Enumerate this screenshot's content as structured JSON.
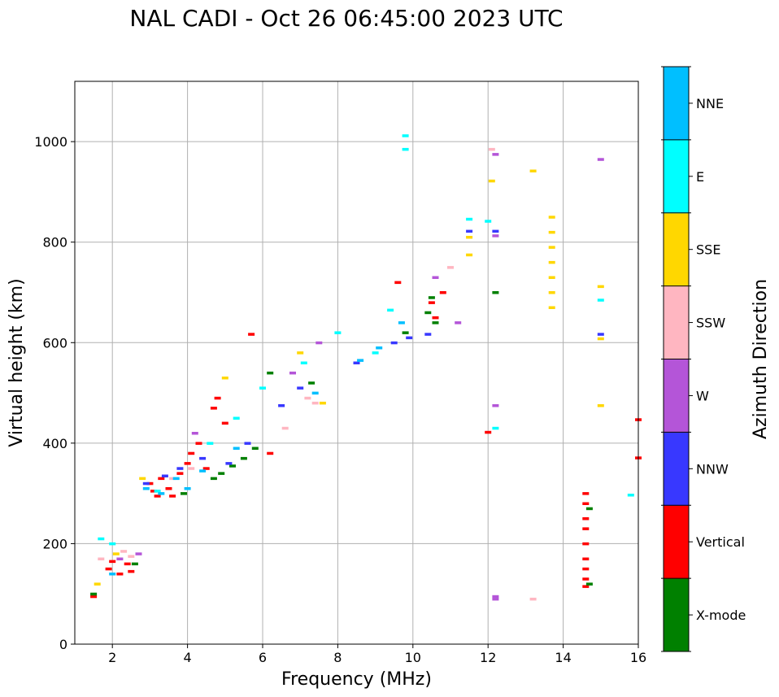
{
  "chart_data": {
    "type": "scatter",
    "title": "NAL CADI - Oct 26 06:45:00 2023 UTC",
    "xlabel": "Frequency (MHz)",
    "ylabel": "Virtual height (km)",
    "xlim": [
      1,
      16
    ],
    "ylim": [
      0,
      1120
    ],
    "xticks": [
      2,
      4,
      6,
      8,
      10,
      12,
      14,
      16
    ],
    "yticks": [
      0,
      200,
      400,
      600,
      800,
      1000
    ],
    "grid": true,
    "colorbar": {
      "title": "Azimuth Direction",
      "categories": [
        {
          "name": "X-mode",
          "color": "#008000"
        },
        {
          "name": "Vertical",
          "color": "#ff0000"
        },
        {
          "name": "NNW",
          "color": "#3838ff"
        },
        {
          "name": "W",
          "color": "#b455d8"
        },
        {
          "name": "SSW",
          "color": "#ffb6c1"
        },
        {
          "name": "SSE",
          "color": "#ffd700"
        },
        {
          "name": "E",
          "color": "#00ffff"
        },
        {
          "name": "NNE",
          "color": "#00bfff"
        }
      ]
    },
    "series": [
      {
        "name": "Vertical",
        "points": [
          [
            1.5,
            95
          ],
          [
            1.9,
            150
          ],
          [
            2.0,
            165
          ],
          [
            2.2,
            140
          ],
          [
            2.4,
            160
          ],
          [
            2.5,
            145
          ],
          [
            3.0,
            320
          ],
          [
            3.1,
            305
          ],
          [
            3.2,
            295
          ],
          [
            3.3,
            330
          ],
          [
            3.5,
            310
          ],
          [
            3.6,
            295
          ],
          [
            3.8,
            340
          ],
          [
            4.0,
            360
          ],
          [
            4.1,
            380
          ],
          [
            4.3,
            400
          ],
          [
            4.5,
            350
          ],
          [
            4.7,
            470
          ],
          [
            4.8,
            490
          ],
          [
            5.0,
            440
          ],
          [
            5.7,
            617
          ],
          [
            6.2,
            380
          ],
          [
            9.6,
            720
          ],
          [
            10.5,
            680
          ],
          [
            10.6,
            650
          ],
          [
            10.8,
            700
          ],
          [
            12.0,
            422
          ],
          [
            14.6,
            300
          ],
          [
            14.6,
            280
          ],
          [
            14.6,
            250
          ],
          [
            14.6,
            230
          ],
          [
            14.6,
            200
          ],
          [
            14.6,
            170
          ],
          [
            14.6,
            150
          ],
          [
            14.6,
            130
          ],
          [
            14.6,
            115
          ],
          [
            16.0,
            447
          ],
          [
            16.0,
            371
          ]
        ]
      },
      {
        "name": "X-mode",
        "points": [
          [
            1.5,
            100
          ],
          [
            2.6,
            160
          ],
          [
            3.9,
            300
          ],
          [
            4.7,
            330
          ],
          [
            4.9,
            340
          ],
          [
            5.2,
            355
          ],
          [
            5.5,
            370
          ],
          [
            5.8,
            390
          ],
          [
            6.2,
            540
          ],
          [
            7.3,
            520
          ],
          [
            9.8,
            620
          ],
          [
            10.4,
            660
          ],
          [
            10.5,
            690
          ],
          [
            10.6,
            640
          ],
          [
            12.2,
            700
          ],
          [
            14.7,
            270
          ],
          [
            14.7,
            120
          ]
        ]
      },
      {
        "name": "NNW",
        "points": [
          [
            2.9,
            320
          ],
          [
            3.4,
            335
          ],
          [
            3.8,
            350
          ],
          [
            4.4,
            370
          ],
          [
            5.1,
            360
          ],
          [
            5.6,
            400
          ],
          [
            6.5,
            475
          ],
          [
            7.0,
            510
          ],
          [
            8.5,
            560
          ],
          [
            9.5,
            600
          ],
          [
            9.9,
            610
          ],
          [
            10.4,
            617
          ],
          [
            11.5,
            822
          ],
          [
            12.2,
            822
          ],
          [
            15.0,
            617
          ]
        ]
      },
      {
        "name": "W",
        "points": [
          [
            2.2,
            170
          ],
          [
            2.7,
            180
          ],
          [
            4.2,
            420
          ],
          [
            6.8,
            540
          ],
          [
            7.5,
            600
          ],
          [
            10.6,
            730
          ],
          [
            11.2,
            640
          ],
          [
            12.2,
            813
          ],
          [
            12.2,
            475
          ],
          [
            12.2,
            95
          ],
          [
            12.2,
            90
          ],
          [
            12.2,
            975
          ],
          [
            15.0,
            965
          ]
        ]
      },
      {
        "name": "SSW",
        "points": [
          [
            1.7,
            170
          ],
          [
            2.3,
            185
          ],
          [
            2.5,
            175
          ],
          [
            3.6,
            330
          ],
          [
            4.1,
            350
          ],
          [
            6.6,
            430
          ],
          [
            7.2,
            490
          ],
          [
            7.4,
            480
          ],
          [
            11.0,
            750
          ],
          [
            12.1,
            985
          ],
          [
            13.2,
            90
          ]
        ]
      },
      {
        "name": "SSE",
        "points": [
          [
            1.6,
            120
          ],
          [
            2.1,
            180
          ],
          [
            2.8,
            330
          ],
          [
            5.0,
            530
          ],
          [
            7.0,
            580
          ],
          [
            7.6,
            480
          ],
          [
            11.5,
            810
          ],
          [
            11.5,
            775
          ],
          [
            12.1,
            922
          ],
          [
            13.2,
            942
          ],
          [
            13.7,
            850
          ],
          [
            13.7,
            820
          ],
          [
            13.7,
            790
          ],
          [
            13.7,
            760
          ],
          [
            13.7,
            730
          ],
          [
            13.7,
            700
          ],
          [
            13.7,
            670
          ],
          [
            15.0,
            712
          ],
          [
            15.0,
            608
          ],
          [
            15.0,
            475
          ]
        ]
      },
      {
        "name": "E",
        "points": [
          [
            1.7,
            210
          ],
          [
            2.0,
            200
          ],
          [
            3.2,
            305
          ],
          [
            4.6,
            400
          ],
          [
            5.3,
            450
          ],
          [
            6.0,
            510
          ],
          [
            7.1,
            560
          ],
          [
            8.0,
            620
          ],
          [
            9.0,
            580
          ],
          [
            9.4,
            665
          ],
          [
            9.8,
            1012
          ],
          [
            9.8,
            985
          ],
          [
            11.5,
            846
          ],
          [
            12.0,
            842
          ],
          [
            12.2,
            430
          ],
          [
            15.0,
            685
          ],
          [
            15.8,
            297
          ]
        ]
      },
      {
        "name": "NNE",
        "points": [
          [
            2.0,
            140
          ],
          [
            2.9,
            310
          ],
          [
            3.3,
            300
          ],
          [
            3.7,
            330
          ],
          [
            4.0,
            310
          ],
          [
            4.4,
            345
          ],
          [
            5.3,
            390
          ],
          [
            7.4,
            500
          ],
          [
            8.6,
            565
          ],
          [
            9.1,
            590
          ],
          [
            9.7,
            640
          ]
        ]
      }
    ]
  }
}
